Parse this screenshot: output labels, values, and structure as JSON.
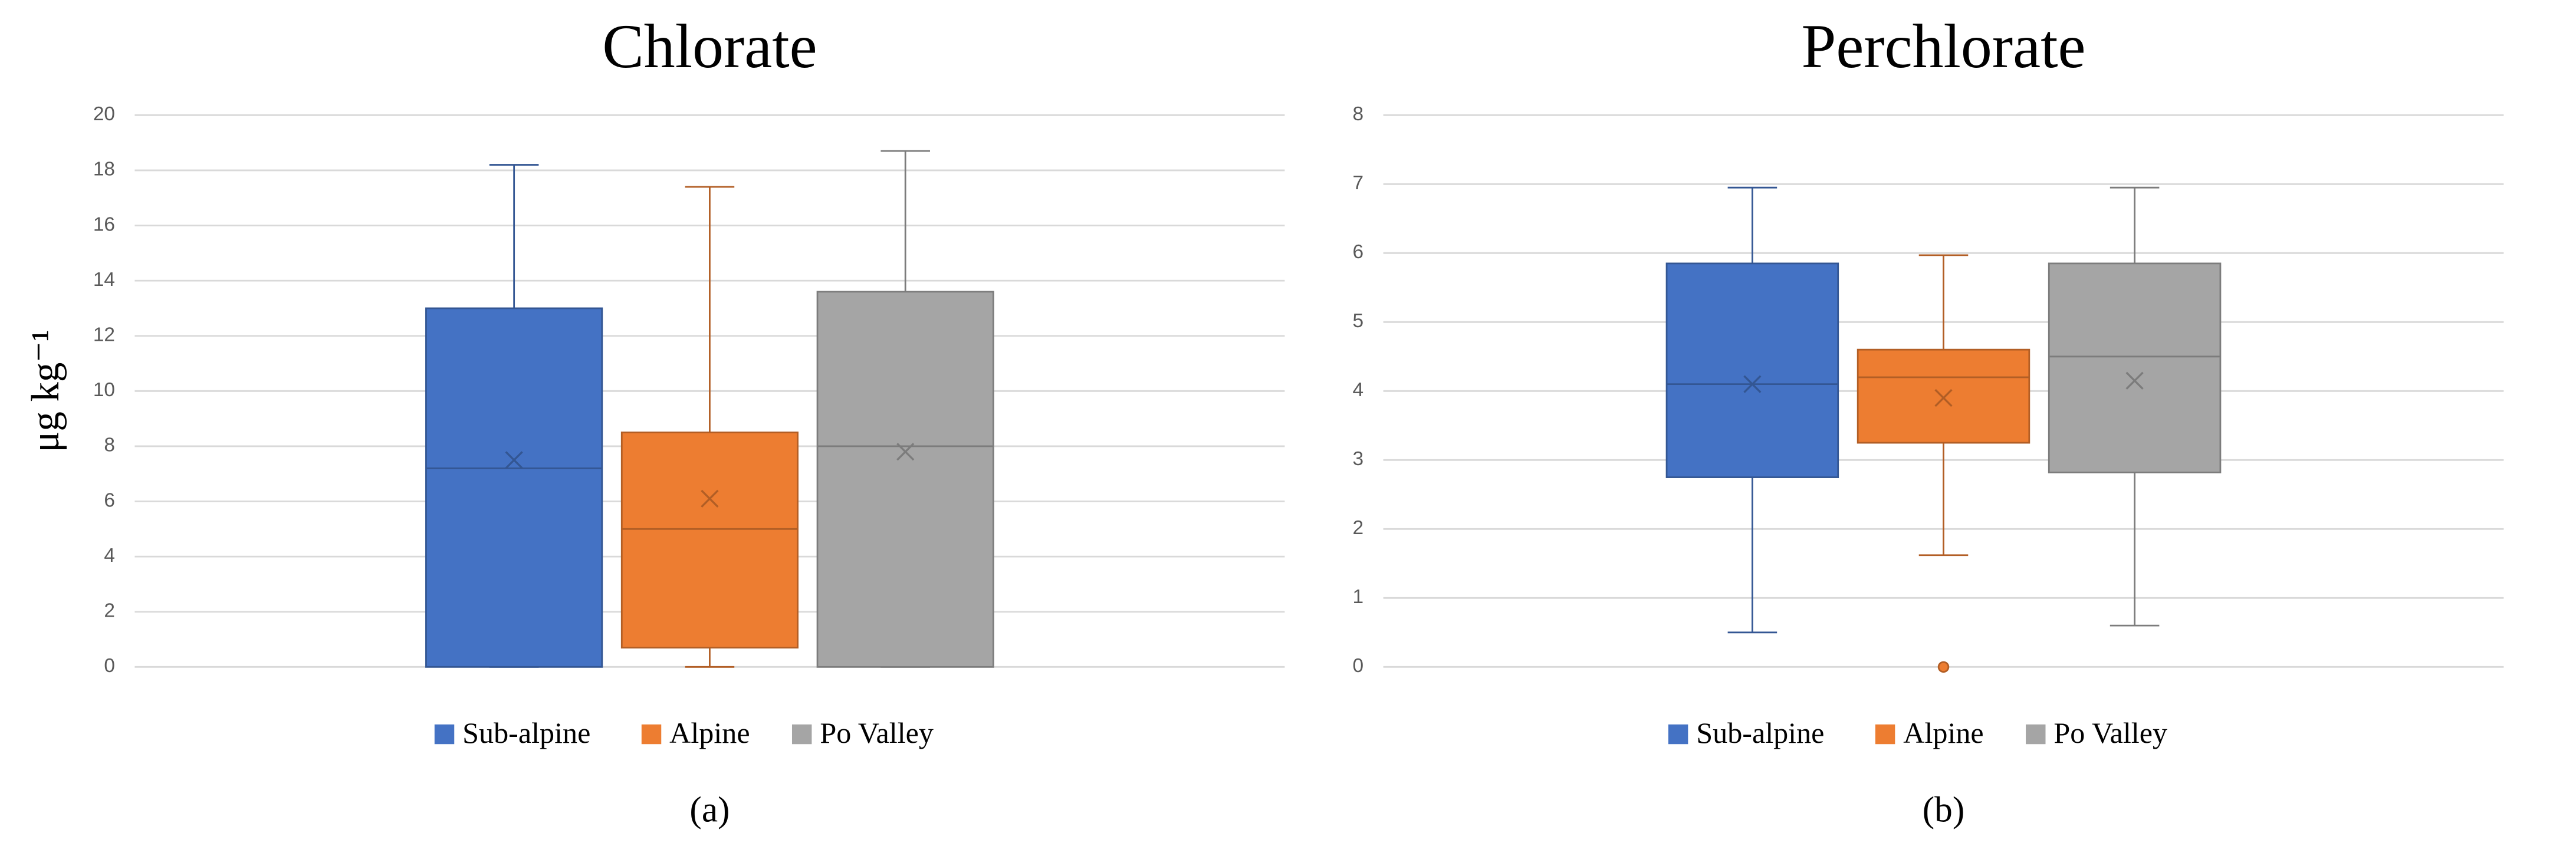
{
  "chart_data": [
    {
      "type": "box",
      "title": "Chlorate",
      "y_label": "μg kg⁻¹",
      "caption": "(a)",
      "ylim": [
        0,
        20
      ],
      "yticks": [
        0,
        2,
        4,
        6,
        8,
        10,
        12,
        14,
        16,
        18,
        20
      ],
      "grid": true,
      "legend": "bottom",
      "series": [
        {
          "name": "Sub-alpine",
          "color": "#4472c4",
          "min": 0,
          "q1": 0,
          "median": 7.2,
          "q3": 13,
          "max": 18.2,
          "mean": 7.5
        },
        {
          "name": "Alpine",
          "color": "#ed7d31",
          "min": 0,
          "q1": 0.7,
          "median": 5,
          "q3": 8.5,
          "max": 17.4,
          "mean": 6.1
        },
        {
          "name": "Po Valley",
          "color": "#a5a5a5",
          "min": 0,
          "q1": 0,
          "median": 8,
          "q3": 13.6,
          "max": 18.7,
          "mean": 7.8
        }
      ]
    },
    {
      "type": "box",
      "title": "Perchlorate",
      "caption": "(b)",
      "ylim": [
        0,
        8
      ],
      "yticks": [
        0,
        1,
        2,
        3,
        4,
        5,
        6,
        7,
        8
      ],
      "grid": true,
      "legend": "bottom",
      "series": [
        {
          "name": "Sub-alpine",
          "color": "#4472c4",
          "min": 0.5,
          "q1": 2.75,
          "median": 4.1,
          "q3": 5.85,
          "max": 6.95,
          "mean": 4.1
        },
        {
          "name": "Alpine",
          "color": "#ed7d31",
          "min": 1.62,
          "q1": 3.25,
          "median": 4.2,
          "q3": 4.6,
          "max": 5.97,
          "mean": 3.9,
          "outliers": [
            0
          ]
        },
        {
          "name": "Po Valley",
          "color": "#a5a5a5",
          "min": 0.6,
          "q1": 2.82,
          "median": 4.5,
          "q3": 5.85,
          "max": 6.95,
          "mean": 4.15
        }
      ]
    }
  ]
}
